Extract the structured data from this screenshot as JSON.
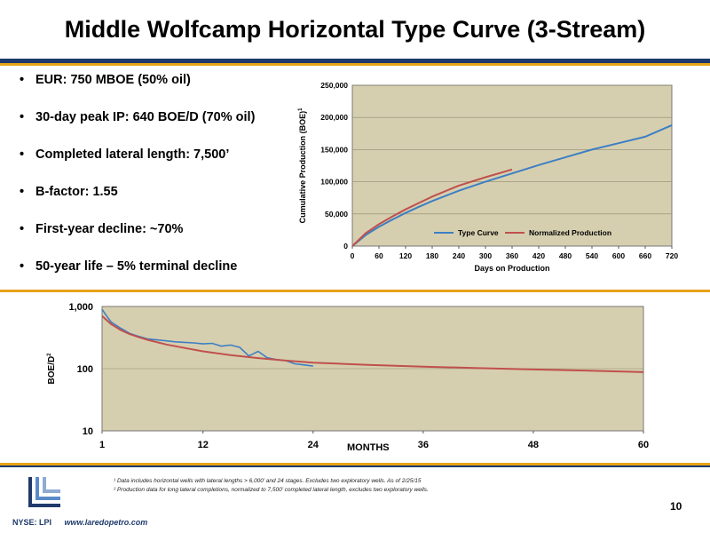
{
  "title": "Middle Wolfcamp Horizontal Type Curve (3-Stream)",
  "colors": {
    "navy": "#1f3a6b",
    "gold": "#e8a317",
    "plot_bg": "#d6cfaf",
    "type_curve": "#3d7fc4",
    "normalized": "#c0504d"
  },
  "bullets": [
    "EUR: 750 MBOE (50% oil)",
    "30-day peak IP: 640 BOE/D (70% oil)",
    "Completed lateral length: 7,500’",
    "B-factor: 1.55",
    "First-year decline: ~70%",
    "50-year life – 5% terminal decline"
  ],
  "chart_data": [
    {
      "type": "line",
      "ylabel": "Cumulative Production (BOE)",
      "ylabel_sup": "1",
      "xlabel": "Days on Production",
      "xlim": [
        0,
        720
      ],
      "ylim": [
        0,
        250000
      ],
      "xticks": [
        "0",
        "60",
        "120",
        "180",
        "240",
        "300",
        "360",
        "420",
        "480",
        "540",
        "600",
        "660",
        "720"
      ],
      "yticks": [
        "0",
        "50,000",
        "100,000",
        "150,000",
        "200,000",
        "250,000"
      ],
      "grid": "horizontal",
      "legend_position": "bottom-inside",
      "series": [
        {
          "name": "Type Curve",
          "color": "#3d7fc4",
          "x": [
            0,
            30,
            60,
            90,
            120,
            150,
            180,
            240,
            300,
            360,
            420,
            480,
            540,
            600,
            660,
            720
          ],
          "y": [
            0,
            17000,
            30000,
            41000,
            51500,
            61000,
            70000,
            86000,
            100000,
            113000,
            126000,
            138000,
            150000,
            160000,
            170000,
            188000
          ]
        },
        {
          "name": "Normalized Production",
          "color": "#c0504d",
          "x": [
            0,
            30,
            60,
            90,
            120,
            150,
            180,
            240,
            300,
            360
          ],
          "y": [
            0,
            20000,
            34000,
            46000,
            57000,
            67000,
            77000,
            94000,
            107000,
            119000
          ]
        }
      ]
    },
    {
      "type": "line",
      "ylabel": "BOE/D",
      "ylabel_sup": "2",
      "xlabel": "MONTHS",
      "xlim": [
        1,
        60
      ],
      "ylim": [
        10,
        1000
      ],
      "yscale": "log",
      "xticks": [
        "1",
        "12",
        "24",
        "36",
        "48",
        "60"
      ],
      "yticks": [
        "10",
        "100",
        "1,000"
      ],
      "grid": "horizontal",
      "series": [
        {
          "name": "Type Curve",
          "color": "#c0504d",
          "x": [
            1,
            2,
            3,
            4,
            5,
            6,
            8,
            10,
            12,
            15,
            18,
            21,
            24,
            30,
            36,
            42,
            48,
            54,
            60
          ],
          "y": [
            700,
            520,
            420,
            360,
            320,
            290,
            245,
            215,
            190,
            165,
            148,
            135,
            125,
            115,
            108,
            102,
            97,
            93,
            88
          ]
        },
        {
          "name": "Normalized Production",
          "color": "#3d7fc4",
          "x": [
            1,
            1.5,
            2,
            3,
            4,
            5,
            6,
            7,
            8,
            9,
            10,
            11,
            12,
            13,
            14,
            15,
            16,
            17,
            18,
            19,
            20,
            21,
            22,
            23,
            24
          ],
          "y": [
            900,
            700,
            560,
            450,
            370,
            330,
            300,
            290,
            280,
            270,
            265,
            260,
            250,
            255,
            230,
            240,
            220,
            160,
            190,
            150,
            140,
            135,
            120,
            115,
            110
          ]
        }
      ]
    }
  ],
  "footnotes": [
    "¹ Data includes horizontal wells with lateral lengths > 6,000’ and 24 stages.  Excludes two exploratory wells. As of 2/25/15",
    "² Production data for long lateral completions, normalized to 7,500’ completed lateral length, excludes two exploratory wells."
  ],
  "page_number": "10",
  "footer": {
    "ticker": "NYSE: LPI",
    "url": "www.laredopetro.com"
  }
}
